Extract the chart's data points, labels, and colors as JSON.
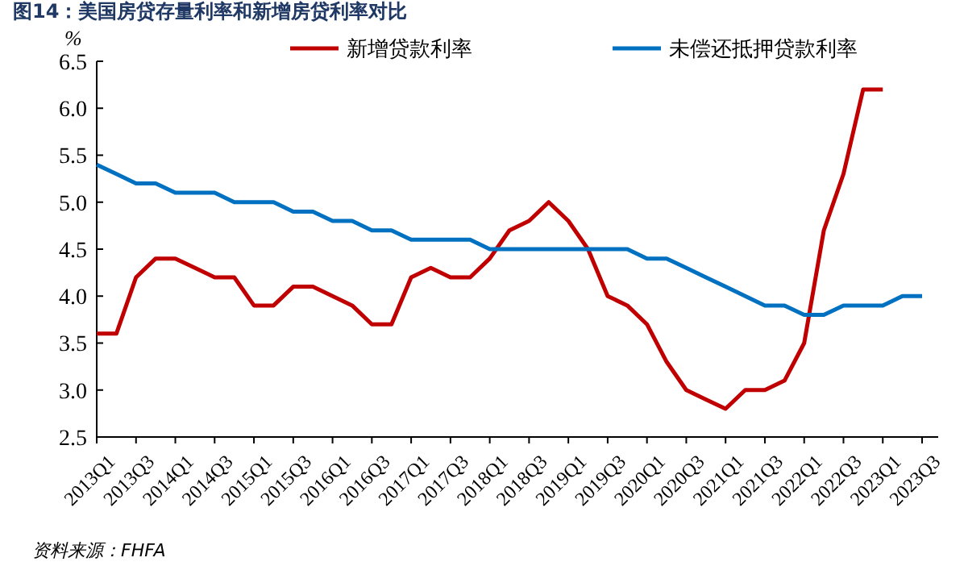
{
  "chart_data": {
    "type": "line",
    "title": "图14：美国房贷存量利率和新增房贷利率对比",
    "ylabel": "%",
    "categories": [
      "2013Q1",
      null,
      "2013Q3",
      null,
      "2014Q1",
      null,
      "2014Q3",
      null,
      "2015Q1",
      null,
      "2015Q3",
      null,
      "2016Q1",
      null,
      "2016Q3",
      null,
      "2017Q1",
      null,
      "2017Q3",
      null,
      "2018Q1",
      null,
      "2018Q3",
      null,
      "2019Q1",
      null,
      "2019Q3",
      null,
      "2020Q1",
      null,
      "2020Q3",
      null,
      "2021Q1",
      null,
      "2021Q3",
      null,
      "2022Q1",
      null,
      "2022Q3",
      null,
      "2023Q1",
      null,
      "2023Q3"
    ],
    "series": [
      {
        "name": "新增贷款利率",
        "color": "#c00000",
        "values": [
          3.6,
          3.6,
          4.2,
          4.4,
          4.4,
          4.3,
          4.2,
          4.2,
          3.9,
          3.9,
          4.1,
          4.1,
          4.0,
          3.9,
          3.7,
          3.7,
          4.2,
          4.3,
          4.2,
          4.2,
          4.4,
          4.7,
          4.8,
          5.0,
          4.8,
          4.5,
          4.0,
          3.9,
          3.7,
          3.3,
          3.0,
          2.9,
          2.8,
          3.0,
          3.0,
          3.1,
          3.5,
          4.7,
          5.3,
          6.2,
          6.2,
          null,
          null
        ]
      },
      {
        "name": "未偿还抵押贷款利率",
        "color": "#0070c0",
        "values": [
          5.4,
          5.3,
          5.2,
          5.2,
          5.1,
          5.1,
          5.1,
          5.0,
          5.0,
          5.0,
          4.9,
          4.9,
          4.8,
          4.8,
          4.7,
          4.7,
          4.6,
          4.6,
          4.6,
          4.6,
          4.5,
          4.5,
          4.5,
          4.5,
          4.5,
          4.5,
          4.5,
          4.5,
          4.4,
          4.4,
          4.3,
          4.2,
          4.1,
          4.0,
          3.9,
          3.9,
          3.8,
          3.8,
          3.9,
          3.9,
          3.9,
          4.0,
          4.0
        ]
      }
    ],
    "ylim": [
      2.5,
      6.5
    ],
    "yticks": [
      {
        "value": 2.5,
        "label": "2.5"
      },
      {
        "value": 3,
        "label": "3.0"
      },
      {
        "value": 3.5,
        "label": "3.5"
      },
      {
        "value": 4,
        "label": "4.0"
      },
      {
        "value": 4.5,
        "label": "4.5"
      },
      {
        "value": 5,
        "label": "5.0"
      },
      {
        "value": 5.5,
        "label": "5.5"
      },
      {
        "value": 6,
        "label": "6.0"
      },
      {
        "value": 6.5,
        "label": "6.5"
      }
    ],
    "legend": "top",
    "grid": false,
    "annotations": [
      "资料来源：FHFA"
    ]
  }
}
